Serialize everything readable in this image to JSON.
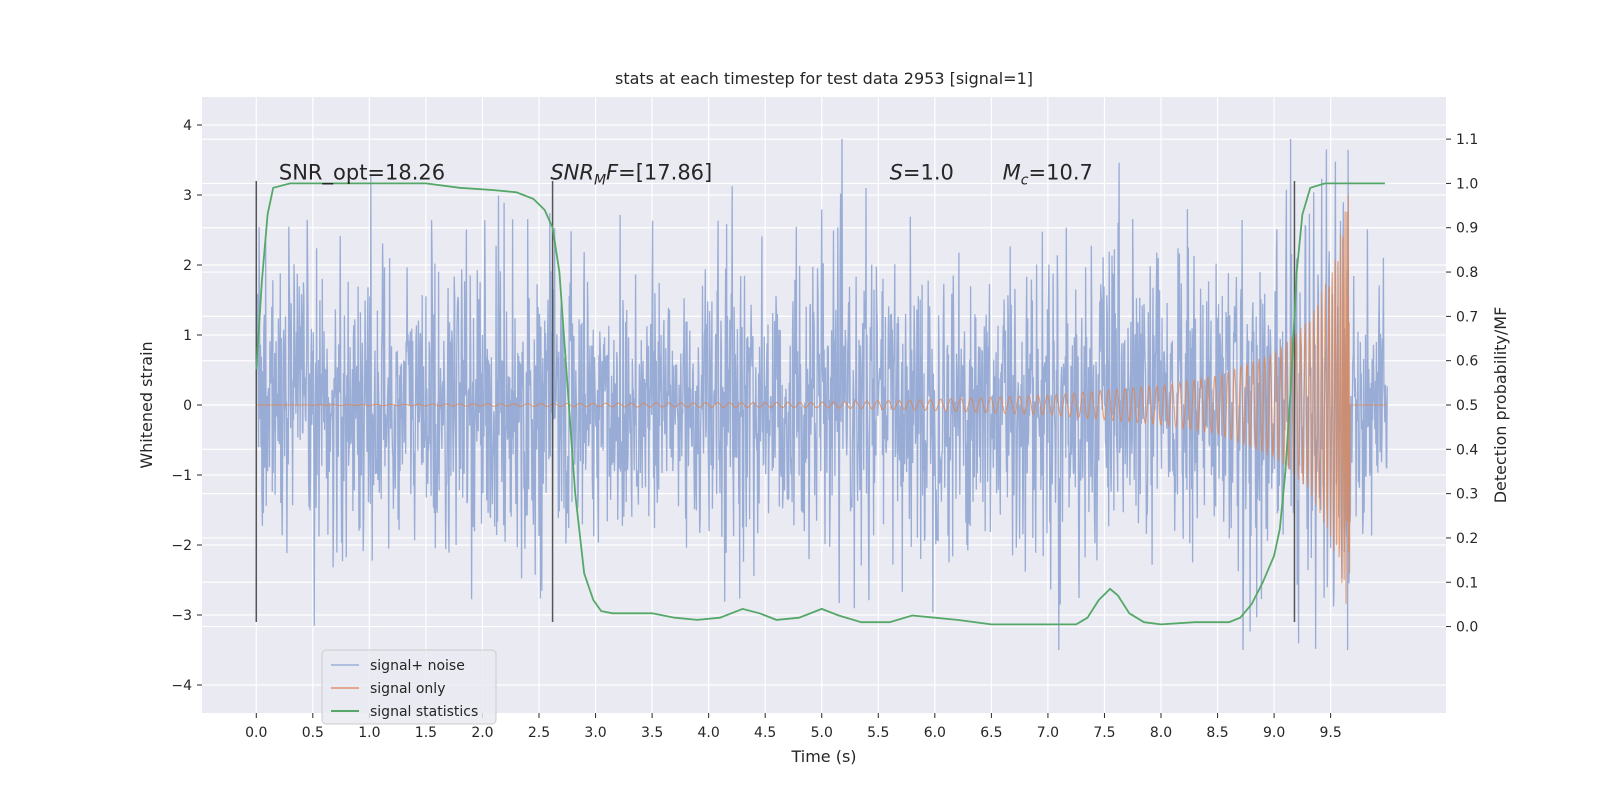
{
  "chart_data": {
    "type": "line",
    "title": "stats at each timestep for test data 2953 [signal=1]",
    "xlabel": "Time (s)",
    "ylabel_left": "Whitened strain",
    "ylabel_right": "Detection probability/MF",
    "xlim": [
      -0.48,
      10.52
    ],
    "ylim_left": [
      -4.4,
      4.4
    ],
    "ylim_right": [
      -0.195,
      1.195
    ],
    "x_ticks": [
      0.0,
      0.5,
      1.0,
      1.5,
      2.0,
      2.5,
      3.0,
      3.5,
      4.0,
      4.5,
      5.0,
      5.5,
      6.0,
      6.5,
      7.0,
      7.5,
      8.0,
      8.5,
      9.0,
      9.5
    ],
    "x_tick_labels": [
      "0.0",
      "0.5",
      "1.0",
      "1.5",
      "2.0",
      "2.5",
      "3.0",
      "3.5",
      "4.0",
      "4.5",
      "5.0",
      "5.5",
      "6.0",
      "6.5",
      "7.0",
      "7.5",
      "8.0",
      "8.5",
      "9.0",
      "9.5"
    ],
    "y_left_ticks": [
      -4,
      -3,
      -2,
      -1,
      0,
      1,
      2,
      3,
      4
    ],
    "y_left_tick_labels": [
      "−4",
      "−3",
      "−2",
      "−1",
      "0",
      "1",
      "2",
      "3",
      "4"
    ],
    "y_right_ticks": [
      0.0,
      0.1,
      0.2,
      0.3,
      0.4,
      0.5,
      0.6,
      0.7,
      0.8,
      0.9,
      1.0,
      1.1
    ],
    "y_right_tick_labels": [
      "0.0",
      "0.1",
      "0.2",
      "0.3",
      "0.4",
      "0.5",
      "0.6",
      "0.7",
      "0.8",
      "0.9",
      "1.0",
      "1.1"
    ],
    "grid": true,
    "legend_position": "lower-left",
    "annotations": [
      {
        "plain": "SNR_opt=18.26",
        "x": 0.2
      },
      {
        "italic": "SNR",
        "sub": "M",
        "italic2": "F",
        "rest": "=[17.86]",
        "x": 2.6
      },
      {
        "italic": "S",
        "rest": "=1.0",
        "x": 5.6
      },
      {
        "italic": "M",
        "sub": "c",
        "rest": "=10.7",
        "x": 6.6
      }
    ],
    "vertical_markers": [
      {
        "x": 0.0,
        "y_range": [
          -3.1,
          3.2
        ]
      },
      {
        "x": 2.62,
        "y_range": [
          -3.1,
          3.2
        ]
      },
      {
        "x": 9.18,
        "y_range": [
          -3.1,
          3.2
        ]
      }
    ],
    "series": [
      {
        "name": "signal+ noise",
        "color": "#8fa5d2",
        "axis": "left",
        "x_range": [
          0.0,
          10.0
        ],
        "description_values": "whitened noisy strain, amplitude roughly within [-3.5, 3.8]",
        "envelope_percentile": 2.1,
        "peak": 4.05,
        "trough": -3.7
      },
      {
        "name": "signal only",
        "color": "#dd8452",
        "axis": "left",
        "x_range": [
          0.0,
          9.68
        ],
        "merger_time": 9.67,
        "amplitude_points": [
          [
            0.0,
            0.0
          ],
          [
            5.0,
            0.04
          ],
          [
            6.0,
            0.08
          ],
          [
            7.0,
            0.14
          ],
          [
            8.0,
            0.28
          ],
          [
            8.5,
            0.42
          ],
          [
            9.0,
            0.75
          ],
          [
            9.3,
            1.2
          ],
          [
            9.5,
            1.9
          ],
          [
            9.6,
            2.6
          ],
          [
            9.67,
            3.1
          ]
        ]
      },
      {
        "name": "signal statistics",
        "color": "#55a868",
        "axis": "right",
        "points": [
          [
            0.0,
            0.58
          ],
          [
            0.05,
            0.78
          ],
          [
            0.1,
            0.93
          ],
          [
            0.15,
            0.99
          ],
          [
            0.3,
            1.0
          ],
          [
            0.5,
            1.0
          ],
          [
            1.0,
            1.0
          ],
          [
            1.5,
            1.0
          ],
          [
            1.8,
            0.99
          ],
          [
            2.1,
            0.985
          ],
          [
            2.3,
            0.98
          ],
          [
            2.45,
            0.965
          ],
          [
            2.55,
            0.94
          ],
          [
            2.62,
            0.9
          ],
          [
            2.68,
            0.8
          ],
          [
            2.75,
            0.55
          ],
          [
            2.82,
            0.3
          ],
          [
            2.9,
            0.12
          ],
          [
            2.98,
            0.06
          ],
          [
            3.05,
            0.035
          ],
          [
            3.15,
            0.03
          ],
          [
            3.3,
            0.03
          ],
          [
            3.5,
            0.03
          ],
          [
            3.7,
            0.02
          ],
          [
            3.9,
            0.015
          ],
          [
            4.1,
            0.02
          ],
          [
            4.3,
            0.04
          ],
          [
            4.45,
            0.03
          ],
          [
            4.6,
            0.015
          ],
          [
            4.8,
            0.02
          ],
          [
            5.0,
            0.04
          ],
          [
            5.15,
            0.025
          ],
          [
            5.35,
            0.01
          ],
          [
            5.6,
            0.01
          ],
          [
            5.8,
            0.025
          ],
          [
            6.0,
            0.02
          ],
          [
            6.2,
            0.015
          ],
          [
            6.5,
            0.005
          ],
          [
            7.0,
            0.005
          ],
          [
            7.25,
            0.005
          ],
          [
            7.35,
            0.02
          ],
          [
            7.45,
            0.06
          ],
          [
            7.55,
            0.085
          ],
          [
            7.62,
            0.07
          ],
          [
            7.72,
            0.03
          ],
          [
            7.85,
            0.01
          ],
          [
            8.0,
            0.005
          ],
          [
            8.3,
            0.01
          ],
          [
            8.6,
            0.01
          ],
          [
            8.7,
            0.02
          ],
          [
            8.8,
            0.05
          ],
          [
            8.9,
            0.1
          ],
          [
            9.0,
            0.16
          ],
          [
            9.05,
            0.22
          ],
          [
            9.1,
            0.35
          ],
          [
            9.15,
            0.55
          ],
          [
            9.2,
            0.8
          ],
          [
            9.25,
            0.93
          ],
          [
            9.32,
            0.99
          ],
          [
            9.45,
            1.0
          ],
          [
            9.7,
            1.0
          ],
          [
            9.98,
            1.0
          ]
        ]
      }
    ]
  }
}
